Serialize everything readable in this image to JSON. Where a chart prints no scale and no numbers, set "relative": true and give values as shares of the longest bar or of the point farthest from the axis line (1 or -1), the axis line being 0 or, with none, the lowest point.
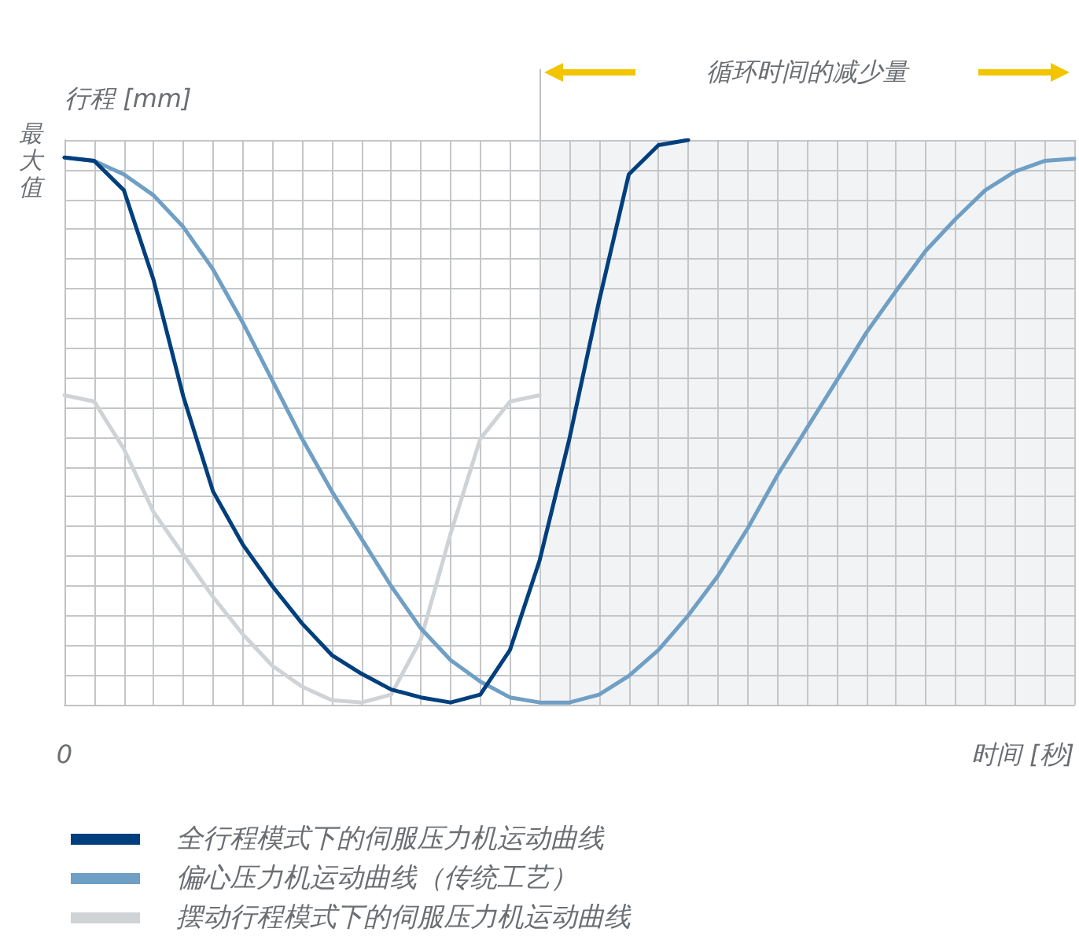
{
  "chart_data": {
    "type": "line",
    "relative": true,
    "ylabel": "行程 [mm]",
    "xlabel": "时间 [秒]",
    "annotations": [
      "最大值",
      "0",
      "循环时间的减少量"
    ],
    "categories": [
      null,
      null,
      null,
      null,
      null,
      null,
      null,
      null,
      null,
      null,
      null,
      null,
      null,
      null,
      null,
      null,
      null,
      null,
      null,
      null,
      null,
      null,
      null,
      null,
      null,
      null,
      null,
      null,
      null,
      null,
      null,
      null,
      null,
      null,
      null
    ],
    "grid": true,
    "legend": "bottom",
    "marker": "none",
    "line_style": "solid",
    "series": [
      {
        "name": "全行程模式下的伺服压力机运动曲线",
        "color": "#003f7d",
        "values": [
          0.969,
          0.963,
          0.911,
          0.752,
          0.546,
          0.378,
          0.284,
          0.21,
          0.144,
          0.088,
          0.055,
          0.027,
          0.013,
          0.004,
          0.018,
          0.097,
          0.256,
          0.471,
          0.715,
          0.939,
          0.991,
          1,
          null,
          null,
          null,
          null,
          null,
          null,
          null,
          null,
          null,
          null,
          null,
          null,
          null
        ]
      },
      {
        "name": "偏心压力机运动曲线（传统工艺）",
        "color": "#6f9fc4",
        "values": [
          0.969,
          0.963,
          0.939,
          0.902,
          0.846,
          0.771,
          0.677,
          0.574,
          0.471,
          0.378,
          0.294,
          0.21,
          0.135,
          0.079,
          0.041,
          0.013,
          0.004,
          0.004,
          0.018,
          0.051,
          0.097,
          0.158,
          0.228,
          0.312,
          0.406,
          0.49,
          0.574,
          0.659,
          0.733,
          0.804,
          0.86,
          0.911,
          0.944,
          0.963,
          0.967
        ]
      },
      {
        "name": "摆动行程模式下的伺服压力机运动曲线",
        "color": "#cfd3d6",
        "values": [
          0.548,
          0.537,
          0.453,
          0.341,
          0.266,
          0.191,
          0.125,
          0.069,
          0.032,
          0.008,
          0.004,
          0.018,
          0.116,
          0.303,
          0.471,
          0.537,
          0.548,
          null,
          null,
          null,
          null,
          null,
          null,
          null,
          null,
          null,
          null,
          null,
          null,
          null,
          null,
          null,
          null,
          null,
          null
        ]
      }
    ]
  }
}
